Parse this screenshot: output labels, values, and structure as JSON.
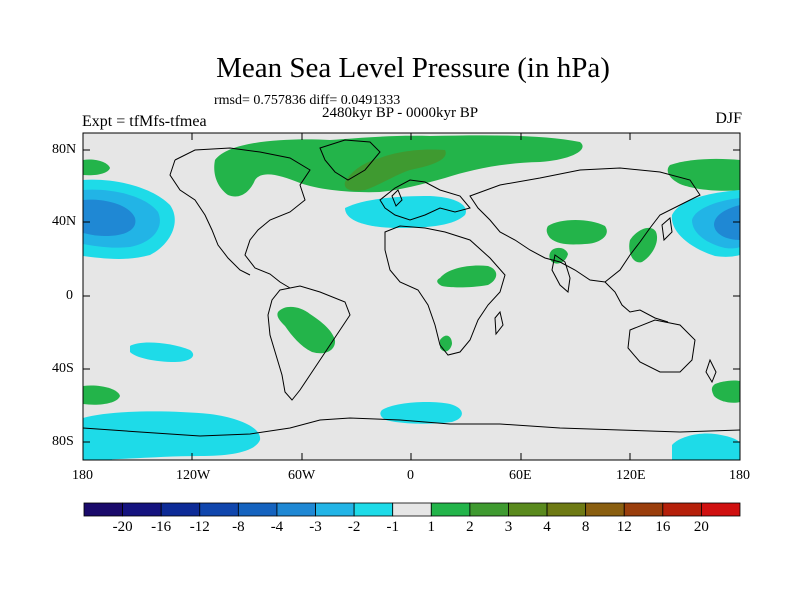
{
  "title": "Mean Sea Level Pressure (in hPa)",
  "stats": "rmsd= 0.757836 diff= 0.0491333",
  "period": "2480kyr BP - 0000kyr BP",
  "expt": "Expt = tfMfs-tfmea",
  "season": "DJF",
  "lat_labels": [
    "80N",
    "40N",
    "0",
    "40S",
    "80S"
  ],
  "lon_labels": [
    "180",
    "120W",
    "60W",
    "0",
    "60E",
    "120E",
    "180"
  ],
  "colorbar": {
    "labels": [
      "-20",
      "-16",
      "-12",
      "-8",
      "-4",
      "-3",
      "-2",
      "-1",
      "1",
      "2",
      "3",
      "4",
      "8",
      "12",
      "16",
      "20"
    ],
    "colors": [
      "#1a0a6b",
      "#15137f",
      "#0d2b97",
      "#1046ad",
      "#1563bf",
      "#1f88d4",
      "#22b4e6",
      "#1edbe8",
      "#e6e6e6",
      "#23b44a",
      "#3f9a30",
      "#5a8a1e",
      "#6e7a14",
      "#8a5f10",
      "#9a3e0c",
      "#b5200a",
      "#d01010"
    ]
  },
  "colors": {
    "neutral": "#e6e6e6",
    "cyan": "#1edbe8",
    "lightblue": "#22b4e6",
    "blue": "#1f88d4",
    "green": "#23b44a",
    "darkgreen": "#3f9a30",
    "brown": "#8a6a20"
  }
}
